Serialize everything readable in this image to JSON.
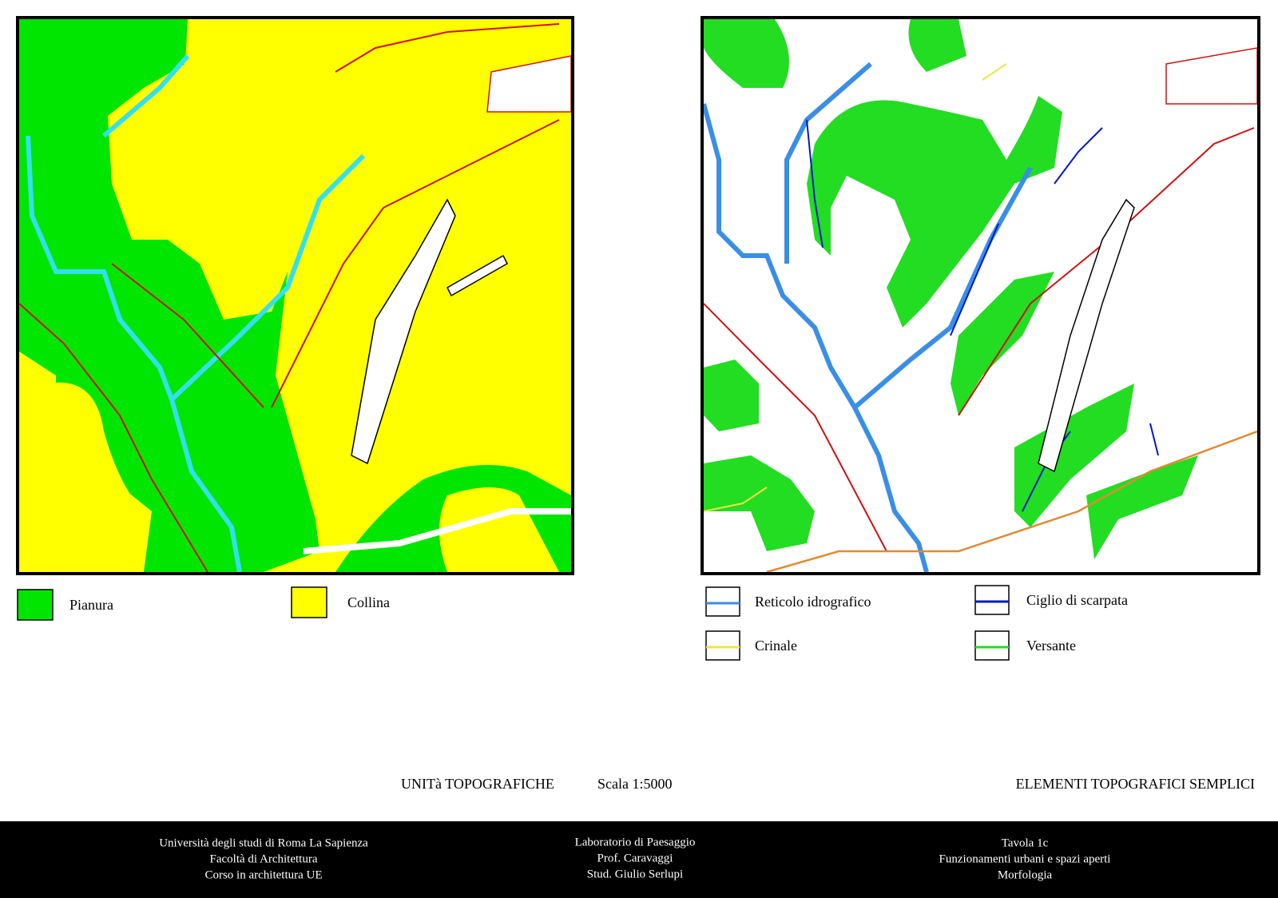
{
  "left_map": {
    "legend": [
      {
        "label": "Pianura",
        "color": "#00e600"
      },
      {
        "label": "Collina",
        "color": "#ffff00"
      }
    ],
    "title": "UNITà TOPOGRAFICHE",
    "scale": "Scala 1:5000"
  },
  "right_map": {
    "legend": [
      {
        "label": "Reticolo idrografico",
        "color": "#3a8ee6"
      },
      {
        "label": "Ciglio di scarpata",
        "color": "#0018c8"
      },
      {
        "label": "Crinale",
        "color": "#f0e640"
      },
      {
        "label": "Versante",
        "color": "#22dd22"
      }
    ],
    "title": "ELEMENTI TOPOGRAFICI SEMPLICI"
  },
  "footer": {
    "left": [
      "Università degli studi di Roma La Sapienza",
      "Facoltà di Architettura",
      "Corso in architettura UE"
    ],
    "center": [
      "Laboratorio di Paesaggio",
      "Prof. Caravaggi",
      "Stud. Giulio Serlupi"
    ],
    "right": [
      "Tavola 1c",
      "Funzionamenti urbani e spazi aperti",
      "Morfologia"
    ]
  }
}
